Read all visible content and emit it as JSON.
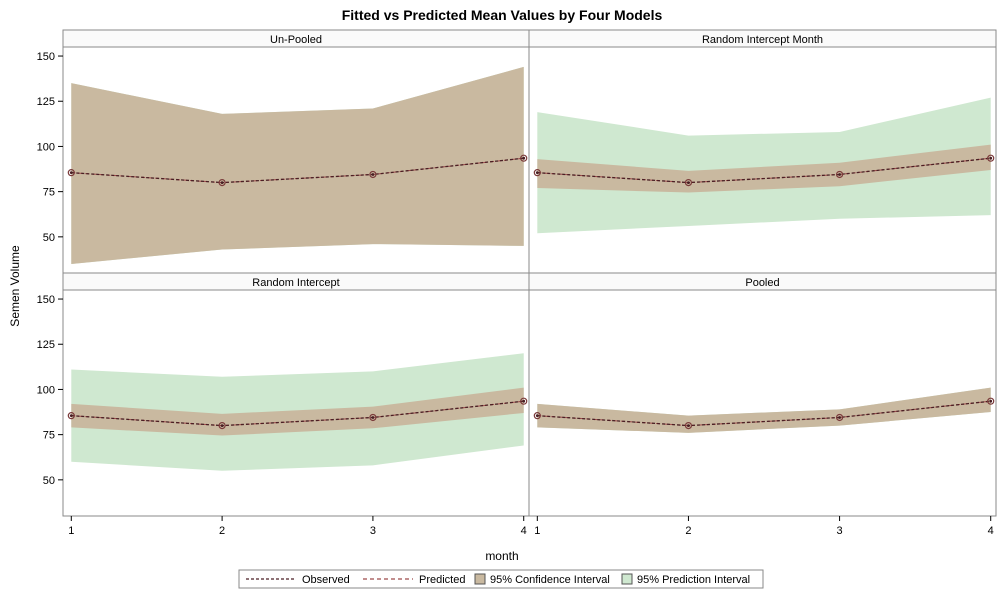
{
  "chart_data": {
    "type": "area",
    "title": "Fitted vs Predicted Mean Values by Four Models",
    "xlabel": "month",
    "ylabel": "Semen Volume",
    "x": [
      1,
      2,
      3,
      4
    ],
    "x_ticks": [
      "1",
      "2",
      "3",
      "4"
    ],
    "ylim": [
      30,
      155
    ],
    "y_ticks": [
      50,
      75,
      100,
      125,
      150
    ],
    "grid": false,
    "legend_position": "bottom",
    "colors": {
      "observed": "#4a1f24",
      "predicted": "#9e4a4a",
      "confidence": "#c9b9a0",
      "prediction": "#cfe8d0",
      "marker": "#7a3a3a"
    },
    "legend": [
      {
        "key": "observed",
        "label": "Observed",
        "style": "line"
      },
      {
        "key": "predicted",
        "label": "Predicted",
        "style": "line"
      },
      {
        "key": "confidence",
        "label": "95% Confidence Interval",
        "style": "box"
      },
      {
        "key": "prediction",
        "label": "95% Prediction Interval",
        "style": "box"
      }
    ],
    "panels": [
      {
        "title": "Un-Pooled",
        "observed": [
          85.5,
          80,
          84.5,
          93.5
        ],
        "predicted": [
          85.5,
          80,
          84.5,
          93.5
        ],
        "confidence_lower": [
          35,
          43,
          46,
          45
        ],
        "confidence_upper": [
          135,
          118,
          121,
          144
        ],
        "prediction_lower": [
          35,
          43,
          46,
          45
        ],
        "prediction_upper": [
          135,
          118,
          121,
          144
        ]
      },
      {
        "title": "Random Intercept Month",
        "observed": [
          85.5,
          80,
          84.5,
          93.5
        ],
        "predicted": [
          85.5,
          80,
          84.5,
          93.5
        ],
        "confidence_lower": [
          77,
          74.5,
          78,
          87
        ],
        "confidence_upper": [
          93,
          86.5,
          91,
          101
        ],
        "prediction_lower": [
          52,
          56,
          60,
          62
        ],
        "prediction_upper": [
          119,
          106,
          108,
          127
        ]
      },
      {
        "title": "Random Intercept",
        "observed": [
          85.5,
          80,
          84.5,
          93.5
        ],
        "predicted": [
          85.5,
          80,
          84.5,
          93.5
        ],
        "confidence_lower": [
          79,
          74.5,
          78.5,
          87
        ],
        "confidence_upper": [
          92,
          86.5,
          90.5,
          101
        ],
        "prediction_lower": [
          60,
          55,
          58,
          69
        ],
        "prediction_upper": [
          111,
          107,
          110,
          120
        ]
      },
      {
        "title": "Pooled",
        "observed": [
          85.5,
          80,
          84.5,
          93.5
        ],
        "predicted": [
          85.5,
          80,
          84.5,
          93.5
        ],
        "confidence_lower": [
          79,
          76,
          80,
          87.5
        ],
        "confidence_upper": [
          92,
          85.5,
          89,
          101
        ],
        "prediction_lower": [
          79,
          76,
          80,
          87.5
        ],
        "prediction_upper": [
          92,
          85.5,
          89,
          101
        ]
      }
    ]
  }
}
